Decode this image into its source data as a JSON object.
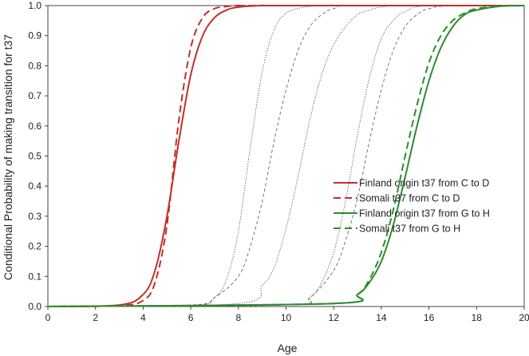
{
  "chart_data": {
    "type": "line",
    "xlabel": "Age",
    "ylabel": "Conditional Probability of making transition for t37",
    "xlim": [
      0,
      20
    ],
    "ylim": [
      0,
      1
    ],
    "x_ticks": [
      "0",
      "2",
      "4",
      "6",
      "8",
      "10",
      "12",
      "14",
      "16",
      "18",
      "20"
    ],
    "y_ticks": [
      "0.0",
      "0.1",
      "0.2",
      "0.3",
      "0.4",
      "0.5",
      "0.6",
      "0.7",
      "0.8",
      "0.9",
      "1.0"
    ],
    "grid": false,
    "legend_position": "right",
    "series": [
      {
        "name": "Finland origin t37 from C to D",
        "color": "#c0302b",
        "dash": "solid",
        "width": 2,
        "x": [
          3,
          4,
          4.5,
          5,
          5.5,
          6,
          6.5,
          7,
          7.5,
          8,
          9,
          10
        ],
        "y": [
          0.005,
          0.04,
          0.12,
          0.3,
          0.55,
          0.77,
          0.9,
          0.96,
          0.985,
          0.995,
          1.0,
          1.0
        ]
      },
      {
        "name": "Somali t37 from C to D",
        "color": "#c0302b",
        "dash": "dashed",
        "width": 2,
        "x": [
          3,
          4,
          4.5,
          5,
          5.5,
          6,
          6.5,
          7,
          7.5,
          8,
          9
        ],
        "y": [
          0.003,
          0.02,
          0.08,
          0.27,
          0.62,
          0.86,
          0.96,
          0.99,
          0.997,
          1.0,
          1.0
        ]
      },
      {
        "name": "Finland origin t37 from G to H",
        "color": "#2e8b2e",
        "dash": "solid",
        "width": 2,
        "x": [
          12,
          13,
          13.5,
          14,
          14.5,
          15,
          15.5,
          16,
          16.5,
          17,
          17.5,
          18,
          19,
          20
        ],
        "y": [
          0.01,
          0.04,
          0.08,
          0.15,
          0.27,
          0.43,
          0.6,
          0.75,
          0.86,
          0.93,
          0.97,
          0.985,
          0.998,
          1.0
        ]
      },
      {
        "name": "Somali t37 from G to H",
        "color": "#2e8b2e",
        "dash": "dashed",
        "width": 2,
        "x": [
          12,
          13,
          13.5,
          14,
          14.5,
          15,
          15.5,
          16,
          16.5,
          17,
          17.5,
          18,
          19,
          20
        ],
        "y": [
          0.01,
          0.04,
          0.09,
          0.18,
          0.32,
          0.5,
          0.67,
          0.81,
          0.9,
          0.95,
          0.975,
          0.99,
          0.998,
          1.0
        ]
      },
      {
        "color": "#333333",
        "dash": "dotted",
        "width": 0.8,
        "x": [
          6,
          7,
          7.5,
          8,
          8.5,
          9,
          9.5,
          10,
          10.5,
          11,
          12
        ],
        "y": [
          0.003,
          0.03,
          0.09,
          0.25,
          0.53,
          0.78,
          0.92,
          0.975,
          0.99,
          0.997,
          1.0
        ]
      },
      {
        "color": "#555555",
        "dash": "dashed-thin",
        "width": 0.8,
        "x": [
          6,
          7,
          8,
          8.5,
          9,
          9.5,
          10,
          10.5,
          11,
          11.5,
          12,
          13
        ],
        "y": [
          0.005,
          0.03,
          0.1,
          0.2,
          0.35,
          0.55,
          0.72,
          0.85,
          0.93,
          0.97,
          0.99,
          1.0
        ]
      },
      {
        "color": "#333333",
        "dash": "dotted",
        "width": 0.8,
        "x": [
          8,
          9,
          9.5,
          10,
          10.5,
          11,
          11.5,
          12,
          12.5,
          13,
          13.5,
          14,
          15
        ],
        "y": [
          0.01,
          0.07,
          0.13,
          0.26,
          0.43,
          0.62,
          0.77,
          0.87,
          0.93,
          0.97,
          0.985,
          0.995,
          1.0
        ]
      },
      {
        "color": "#333333",
        "dotted": true,
        "dash": "dotted",
        "width": 0.8,
        "x": [
          10,
          11,
          11.5,
          12,
          12.5,
          13,
          13.5,
          14,
          14.5,
          15,
          16
        ],
        "y": [
          0.005,
          0.03,
          0.08,
          0.18,
          0.35,
          0.57,
          0.76,
          0.89,
          0.95,
          0.98,
          1.0
        ]
      },
      {
        "color": "#555555",
        "dash": "dashed-thin",
        "width": 0.8,
        "x": [
          10,
          11,
          12,
          12.5,
          13,
          13.5,
          14,
          14.5,
          15,
          15.5,
          16,
          17
        ],
        "y": [
          0.005,
          0.03,
          0.12,
          0.22,
          0.36,
          0.55,
          0.72,
          0.85,
          0.93,
          0.97,
          0.99,
          1.0
        ]
      }
    ]
  }
}
